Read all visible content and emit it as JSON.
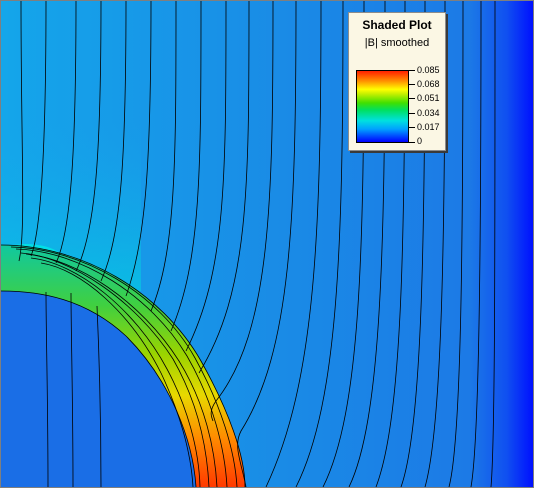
{
  "legend": {
    "title": "Shaded Plot",
    "subtitle": "|B| smoothed",
    "ticks": [
      "0.085",
      "0.068",
      "0.051",
      "0.034",
      "0.017",
      "0"
    ]
  },
  "colors": {
    "field_low": "#0a40ff",
    "field_mid": "#1ea0e8",
    "field_high": "#00e6e6",
    "iron_core": "#1a6ee6",
    "flux_line": "#000000"
  }
}
